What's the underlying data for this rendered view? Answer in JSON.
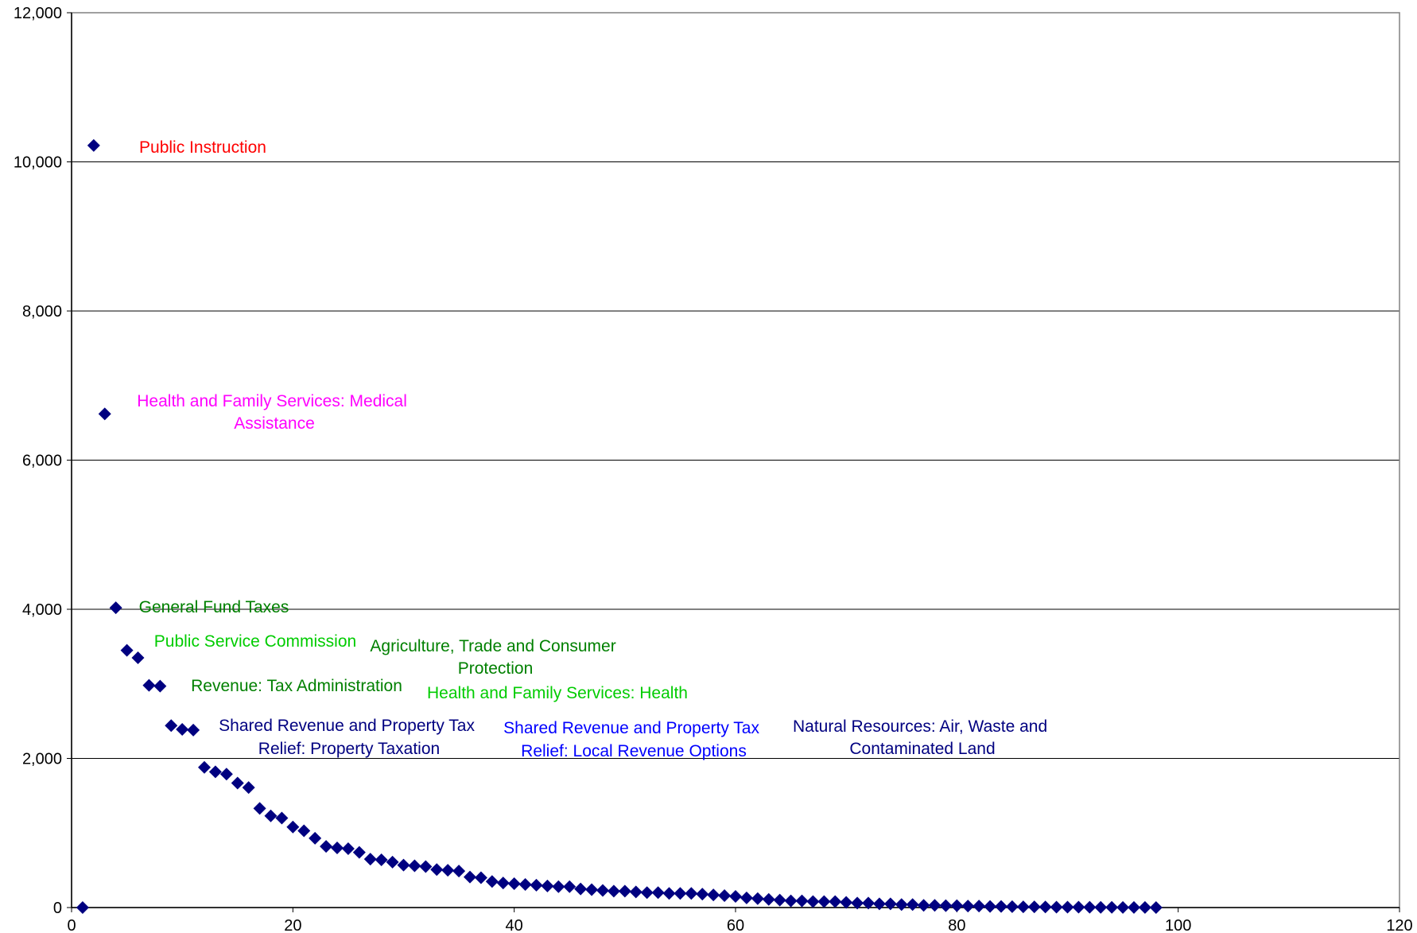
{
  "chart_data": {
    "type": "scatter",
    "title": "",
    "xlabel": "",
    "ylabel": "",
    "xlim": [
      0,
      120
    ],
    "ylim": [
      0,
      12000
    ],
    "x_ticks": [
      0,
      20,
      40,
      60,
      80,
      100,
      120
    ],
    "y_ticks": [
      0,
      2000,
      4000,
      6000,
      8000,
      10000,
      12000
    ],
    "x_tick_labels": [
      "0",
      "20",
      "40",
      "60",
      "80",
      "100",
      "120"
    ],
    "y_tick_labels": [
      "0",
      "2,000",
      "4,000",
      "6,000",
      "8,000",
      "10,000",
      "12,000"
    ],
    "grid": "horizontal",
    "marker": "diamond",
    "marker_color": "#000080",
    "points": [
      [
        1,
        0
      ],
      [
        2,
        10220
      ],
      [
        3,
        6620
      ],
      [
        4,
        4020
      ],
      [
        5,
        3450
      ],
      [
        6,
        3350
      ],
      [
        7,
        2980
      ],
      [
        8,
        2970
      ],
      [
        9,
        2440
      ],
      [
        10,
        2390
      ],
      [
        11,
        2380
      ],
      [
        12,
        1880
      ],
      [
        13,
        1820
      ],
      [
        14,
        1790
      ],
      [
        15,
        1670
      ],
      [
        16,
        1610
      ],
      [
        17,
        1330
      ],
      [
        18,
        1230
      ],
      [
        19,
        1200
      ],
      [
        20,
        1080
      ],
      [
        21,
        1030
      ],
      [
        22,
        930
      ],
      [
        23,
        820
      ],
      [
        24,
        800
      ],
      [
        25,
        790
      ],
      [
        26,
        740
      ],
      [
        27,
        650
      ],
      [
        28,
        640
      ],
      [
        29,
        610
      ],
      [
        30,
        570
      ],
      [
        31,
        560
      ],
      [
        32,
        550
      ],
      [
        33,
        510
      ],
      [
        34,
        500
      ],
      [
        35,
        490
      ],
      [
        36,
        410
      ],
      [
        37,
        400
      ],
      [
        38,
        350
      ],
      [
        39,
        330
      ],
      [
        40,
        320
      ],
      [
        41,
        310
      ],
      [
        42,
        300
      ],
      [
        43,
        290
      ],
      [
        44,
        280
      ],
      [
        45,
        280
      ],
      [
        46,
        250
      ],
      [
        47,
        240
      ],
      [
        48,
        230
      ],
      [
        49,
        220
      ],
      [
        50,
        220
      ],
      [
        51,
        210
      ],
      [
        52,
        200
      ],
      [
        53,
        200
      ],
      [
        54,
        190
      ],
      [
        55,
        190
      ],
      [
        56,
        190
      ],
      [
        57,
        180
      ],
      [
        58,
        170
      ],
      [
        59,
        160
      ],
      [
        60,
        150
      ],
      [
        61,
        130
      ],
      [
        62,
        120
      ],
      [
        63,
        110
      ],
      [
        64,
        100
      ],
      [
        65,
        90
      ],
      [
        66,
        90
      ],
      [
        67,
        80
      ],
      [
        68,
        80
      ],
      [
        69,
        80
      ],
      [
        70,
        70
      ],
      [
        71,
        60
      ],
      [
        72,
        60
      ],
      [
        73,
        50
      ],
      [
        74,
        50
      ],
      [
        75,
        40
      ],
      [
        76,
        40
      ],
      [
        77,
        30
      ],
      [
        78,
        30
      ],
      [
        79,
        25
      ],
      [
        80,
        25
      ],
      [
        81,
        20
      ],
      [
        82,
        20
      ],
      [
        83,
        15
      ],
      [
        84,
        15
      ],
      [
        85,
        12
      ],
      [
        86,
        10
      ],
      [
        87,
        10
      ],
      [
        88,
        8
      ],
      [
        89,
        6
      ],
      [
        90,
        5
      ],
      [
        91,
        5
      ],
      [
        92,
        4
      ],
      [
        93,
        3
      ],
      [
        94,
        3
      ],
      [
        95,
        2
      ],
      [
        96,
        2
      ],
      [
        97,
        1
      ],
      [
        98,
        0
      ]
    ],
    "annotations": [
      {
        "lines": [
          "Public Instruction"
        ],
        "color": "#ff0000"
      },
      {
        "lines": [
          "Health and Family Services:  Medical",
          "Assistance"
        ],
        "color": "#ff00ff"
      },
      {
        "lines": [
          "General Fund Taxes"
        ],
        "color": "#008000"
      },
      {
        "lines": [
          "Public Service Commission"
        ],
        "color": "#00cc00"
      },
      {
        "lines": [
          "Agriculture, Trade and Consumer",
          "Protection"
        ],
        "color": "#008000"
      },
      {
        "lines": [
          "Revenue:  Tax Administration"
        ],
        "color": "#008000"
      },
      {
        "lines": [
          "Health and Family Services:  Health"
        ],
        "color": "#00cc00"
      },
      {
        "lines": [
          "Shared Revenue and Property Tax",
          "Relief:  Property Taxation"
        ],
        "color": "#000080"
      },
      {
        "lines": [
          "Shared Revenue and Property Tax",
          "Relief:  Local Revenue Options"
        ],
        "color": "#0000ff"
      },
      {
        "lines": [
          "Natural Resources:  Air, Waste and",
          "Contaminated Land"
        ],
        "color": "#000080"
      }
    ]
  }
}
